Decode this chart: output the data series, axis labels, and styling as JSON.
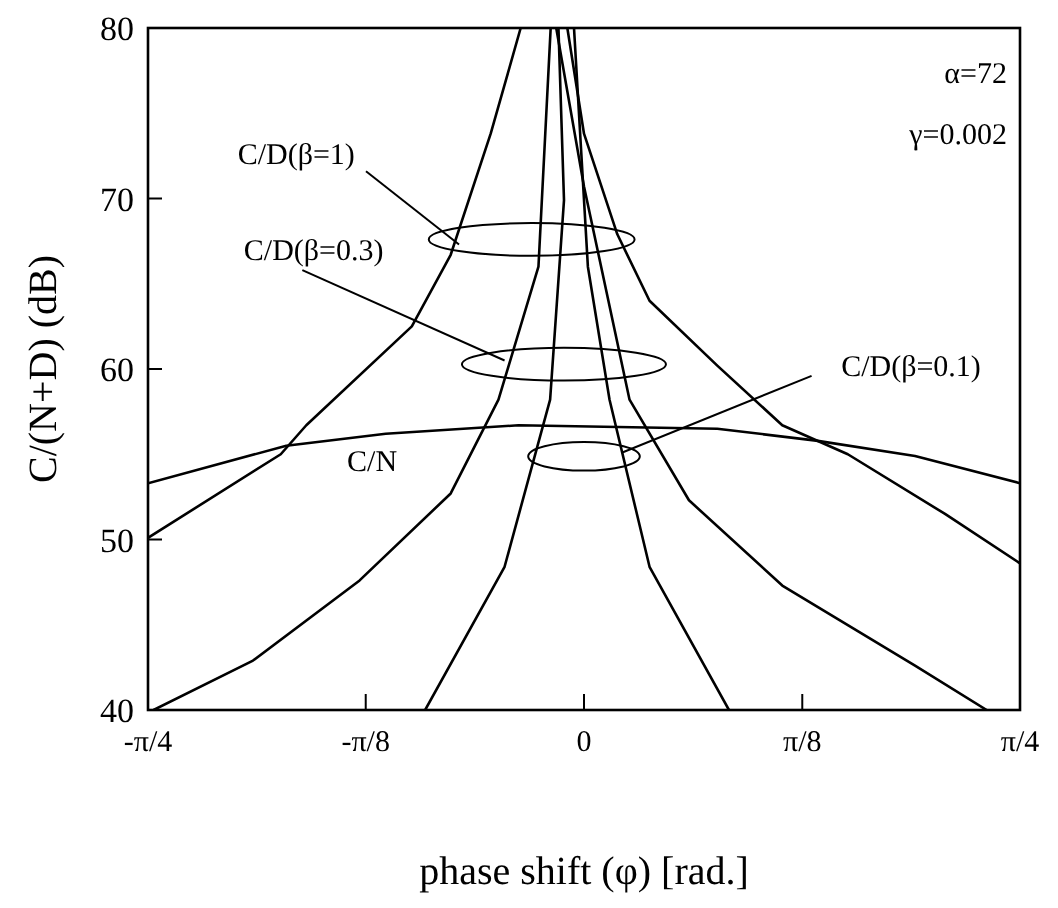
{
  "chart_data": {
    "type": "line",
    "xlabel": "phase shift (φ) [rad.]",
    "ylabel": "C/(N+D) (dB)",
    "xlim": [
      -0.785,
      0.785
    ],
    "ylim": [
      40,
      80
    ],
    "xticks": [
      {
        "value": -0.785,
        "label": "-π/4"
      },
      {
        "value": -0.393,
        "label": "-π/8"
      },
      {
        "value": 0,
        "label": "0"
      },
      {
        "value": 0.393,
        "label": "π/8"
      },
      {
        "value": 0.785,
        "label": "π/4"
      }
    ],
    "yticks": [
      40,
      50,
      60,
      70,
      80
    ],
    "marker": "none",
    "line_style": "solid",
    "series": [
      {
        "color": "#000000",
        "x": [
          -0.785,
          -0.536,
          -0.357,
          -0.118,
          0.24,
          0.418,
          0.596,
          0.785
        ],
        "values": [
          53.3,
          55.5,
          56.2,
          56.7,
          56.5,
          55.8,
          54.9,
          53.3
        ]
      },
      {
        "color": "#000000",
        "x": [
          -0.785,
          -0.546,
          -0.5,
          -0.31,
          -0.24,
          -0.168,
          -0.114,
          -0.08,
          -0.03,
          0,
          0.06,
          0.118,
          0.24,
          0.357,
          0.475,
          0.65,
          0.785
        ],
        "values": [
          50.1,
          55,
          56.7,
          62.5,
          66.7,
          73.8,
          80,
          null,
          80,
          73.8,
          67.9,
          64,
          60.2,
          56.7,
          55,
          51.5,
          48.6
        ]
      },
      {
        "color": "#000000",
        "x": [
          -0.775,
          -0.596,
          -0.404,
          -0.24,
          -0.154,
          -0.082,
          -0.06,
          -0.055,
          -0.05,
          0,
          0.082,
          0.189,
          0.357,
          0.596,
          0.725
        ],
        "values": [
          40,
          42.9,
          47.6,
          52.7,
          58.2,
          66,
          80,
          null,
          80,
          70.7,
          58.2,
          52.3,
          47.3,
          42.6,
          40
        ]
      },
      {
        "color": "#000000",
        "x": [
          -0.286,
          -0.143,
          -0.061,
          -0.036,
          -0.046,
          -0.03,
          -0.018,
          0.007,
          0.046,
          0.118,
          0.261
        ],
        "values": [
          40,
          48.4,
          58.2,
          69.9,
          80,
          null,
          80,
          66,
          58.2,
          48.4,
          40
        ]
      }
    ],
    "annotations": [
      {
        "text": "C/D(β=1)",
        "x": -0.225,
        "y": 67.3
      },
      {
        "text": "C/D(β=0.3)",
        "x": -0.143,
        "y": 60.5
      },
      {
        "text": "C/D(β=0.1)",
        "x": 0.069,
        "y": 55.1
      },
      "C/N",
      "α=72",
      "γ=0.002"
    ]
  }
}
